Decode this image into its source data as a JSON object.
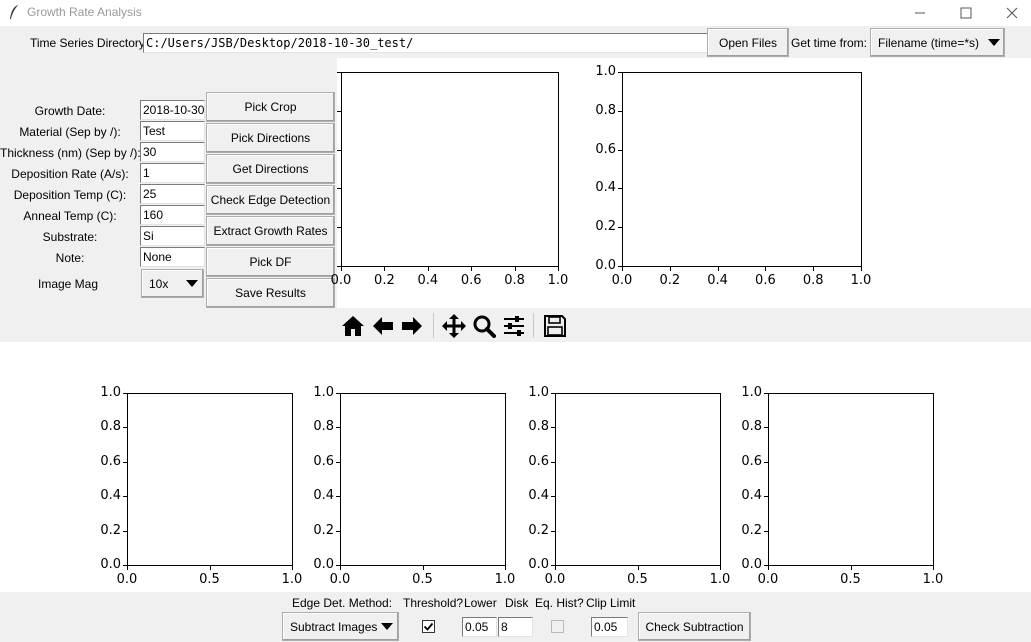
{
  "window": {
    "title": "Growth Rate Analysis"
  },
  "top_bar": {
    "dir_label": "Time Series Directory",
    "dir_value": "C:/Users/JSB/Desktop/2018-10-30_test/",
    "open_files": "Open Files",
    "time_label": "Get time from:",
    "time_value": "Filename (time=*s)"
  },
  "form": {
    "fields": [
      {
        "label": "Growth Date:",
        "value": "2018-10-30"
      },
      {
        "label": "Material (Sep by /):",
        "value": "Test"
      },
      {
        "label": "Thickness (nm) (Sep by /):",
        "value": "30"
      },
      {
        "label": "Deposition Rate (A/s):",
        "value": "1"
      },
      {
        "label": "Deposition Temp (C):",
        "value": "25"
      },
      {
        "label": "Anneal Temp (C):",
        "value": "160"
      },
      {
        "label": "Substrate:",
        "value": "Si"
      },
      {
        "label": "Note:",
        "value": "None"
      }
    ],
    "mag_label": "Image Mag",
    "mag_value": "10x"
  },
  "buttons": {
    "pick_crop": "Pick Crop",
    "pick_directions": "Pick Directions",
    "get_directions": "Get Directions",
    "check_edge": "Check Edge Detection",
    "extract": "Extract Growth Rates",
    "pick_df": "Pick DF",
    "save": "Save Results"
  },
  "plots": {
    "top_left": {
      "xticks": [
        "0.0",
        "0.2",
        "0.4",
        "0.6",
        "0.8",
        "1.0"
      ]
    },
    "top_right": {
      "xticks": [
        "0.0",
        "0.2",
        "0.4",
        "0.6",
        "0.8",
        "1.0"
      ],
      "yticks": [
        "0.0",
        "0.2",
        "0.4",
        "0.6",
        "0.8",
        "1.0"
      ]
    },
    "bottom": {
      "xticks": [
        "0.0",
        "0.5",
        "1.0"
      ],
      "yticks": [
        "0.0",
        "0.2",
        "0.4",
        "0.6",
        "0.8",
        "1.0"
      ]
    }
  },
  "toolbar": {
    "icons": [
      "home-icon",
      "back-arrow-icon",
      "forward-arrow-icon",
      "pan-icon",
      "zoom-icon",
      "configure-subplots-icon",
      "save-figure-icon"
    ]
  },
  "bottom_controls": {
    "edge_method_label": "Edge Det. Method:",
    "edge_method_value": "Subtract Images",
    "threshold_label": "Threshold?",
    "lower_label": "Lower",
    "lower_value": "0.05",
    "disk_label": "Disk",
    "disk_value": "8",
    "eqhist_label": "Eq. Hist?",
    "clip_label": "Clip Limit",
    "clip_value": "0.05",
    "check_sub": "Check Subtraction"
  }
}
